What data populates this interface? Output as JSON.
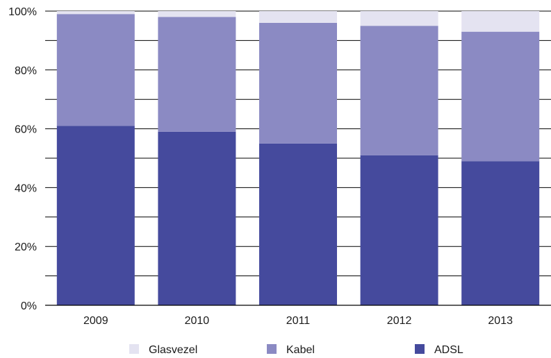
{
  "chart_data": {
    "type": "bar",
    "stacked": true,
    "categories": [
      "2009",
      "2010",
      "2011",
      "2012",
      "2013"
    ],
    "series": [
      {
        "name": "ADSL",
        "color": "#454a9d",
        "values": [
          61,
          59,
          55,
          51,
          49
        ]
      },
      {
        "name": "Kabel",
        "color": "#8b8ac3",
        "values": [
          38,
          39,
          41,
          44,
          44
        ]
      },
      {
        "name": "Glasvezel",
        "color": "#e4e3f1",
        "values": [
          1,
          2,
          4,
          5,
          7
        ]
      }
    ],
    "y_ticks": [
      "0%",
      "20%",
      "40%",
      "60%",
      "80%",
      "100%"
    ],
    "ylim": [
      0,
      100
    ],
    "y_unit": "%",
    "grid": true,
    "legend_position": "bottom",
    "legend_order": [
      "Glasvezel",
      "Kabel",
      "ADSL"
    ]
  }
}
